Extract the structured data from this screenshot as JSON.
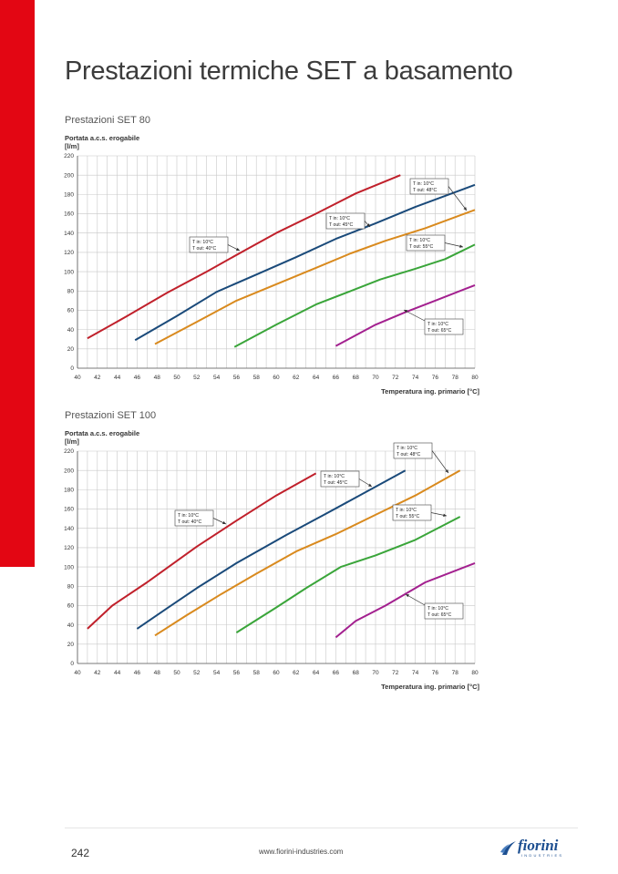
{
  "page": {
    "title": "Prestazioni termiche SET a basamento",
    "page_number": "242",
    "website": "www.fiorini-industries.com",
    "brand": "fiorini",
    "brand_sub": "INDUSTRIES"
  },
  "colors": {
    "accent": "#e30613",
    "grid": "#c8c8c8",
    "series": [
      "#c0202b",
      "#1a4a7a",
      "#d98a1e",
      "#3aa53a",
      "#a3208f"
    ]
  },
  "chart_data": [
    {
      "type": "line",
      "title": "Prestazioni SET 80",
      "ylabel": "Portata a.c.s. erogabile",
      "ylabel_unit": "[l/m]",
      "xlabel": "Temperatura ing. primario [°C]",
      "xlim": [
        40,
        80
      ],
      "ylim": [
        0,
        220
      ],
      "xticks": [
        "40",
        "42",
        "44",
        "46",
        "48",
        "50",
        "52",
        "54",
        "56",
        "58",
        "60",
        "62",
        "64",
        "66",
        "68",
        "70",
        "72",
        "74",
        "76",
        "78",
        "80"
      ],
      "yticks": [
        "0",
        "20",
        "40",
        "60",
        "80",
        "100",
        "120",
        "140",
        "160",
        "180",
        "200",
        "220"
      ],
      "grid": true,
      "series": [
        {
          "x": [
            41,
            45,
            49,
            53,
            57,
            60,
            64,
            68,
            72.5
          ],
          "y": [
            31,
            54,
            78,
            100,
            123,
            140,
            160,
            181,
            200
          ]
        },
        {
          "x": [
            45.8,
            50,
            54,
            58,
            62,
            66,
            70,
            74,
            80
          ],
          "y": [
            29,
            54,
            79,
            97,
            115,
            134,
            150,
            167,
            190
          ]
        },
        {
          "x": [
            47.8,
            52,
            56,
            60,
            64,
            67.5,
            71,
            75,
            80
          ],
          "y": [
            25,
            48,
            70,
            87,
            104,
            119,
            132,
            145,
            164
          ]
        },
        {
          "x": [
            55.8,
            60,
            64,
            68,
            70.5,
            74,
            77,
            80
          ],
          "y": [
            22,
            45,
            66,
            82,
            92,
            103,
            113,
            128
          ]
        },
        {
          "x": [
            66,
            70,
            73,
            76,
            80
          ],
          "y": [
            23,
            45,
            58,
            70,
            86
          ]
        }
      ],
      "annotations": [
        {
          "lines": [
            "T in: 10°C",
            "T out: 40°C"
          ]
        },
        {
          "lines": [
            "T in: 10°C",
            "T out: 45°C"
          ]
        },
        {
          "lines": [
            "T in: 10°C",
            "T out: 48°C"
          ]
        },
        {
          "lines": [
            "T in: 10°C",
            "T out: 55°C"
          ]
        },
        {
          "lines": [
            "T in: 10°C",
            "T out: 65°C"
          ]
        }
      ]
    },
    {
      "type": "line",
      "title": "Prestazioni SET 100",
      "ylabel": "Portata a.c.s. erogabile",
      "ylabel_unit": "[l/m]",
      "xlabel": "Temperatura ing. primario [°C]",
      "xlim": [
        40,
        80
      ],
      "ylim": [
        0,
        220
      ],
      "xticks": [
        "40",
        "42",
        "44",
        "46",
        "48",
        "50",
        "52",
        "54",
        "56",
        "58",
        "60",
        "62",
        "64",
        "66",
        "68",
        "70",
        "72",
        "74",
        "76",
        "78",
        "80"
      ],
      "yticks": [
        "0",
        "20",
        "40",
        "60",
        "80",
        "100",
        "120",
        "140",
        "160",
        "180",
        "200",
        "220"
      ],
      "grid": true,
      "series": [
        {
          "x": [
            41,
            43.5,
            47,
            52,
            56,
            60,
            64
          ],
          "y": [
            36,
            60,
            84,
            121,
            148,
            174,
            197
          ]
        },
        {
          "x": [
            46,
            49,
            52,
            56,
            61,
            65,
            73
          ],
          "y": [
            36,
            57,
            78,
            104,
            133,
            155,
            200
          ]
        },
        {
          "x": [
            47.8,
            51,
            54.5,
            58,
            62,
            66,
            70,
            74,
            78.5
          ],
          "y": [
            29,
            50,
            72,
            93,
            116,
            134,
            154,
            174,
            200
          ]
        },
        {
          "x": [
            56,
            60,
            63,
            66.5,
            70,
            74,
            78.5
          ],
          "y": [
            32,
            58,
            78,
            100,
            112,
            128,
            152
          ]
        },
        {
          "x": [
            66,
            68,
            71,
            75,
            80
          ],
          "y": [
            27,
            44,
            60,
            84,
            104
          ]
        }
      ],
      "annotations": [
        {
          "lines": [
            "T in: 10°C",
            "T out: 40°C"
          ]
        },
        {
          "lines": [
            "T in: 10°C",
            "T out: 45°C"
          ]
        },
        {
          "lines": [
            "T in: 10°C",
            "T out: 48°C"
          ]
        },
        {
          "lines": [
            "T in: 10°C",
            "T out: 55°C"
          ]
        },
        {
          "lines": [
            "T in: 10°C",
            "T out: 65°C"
          ]
        }
      ]
    }
  ]
}
